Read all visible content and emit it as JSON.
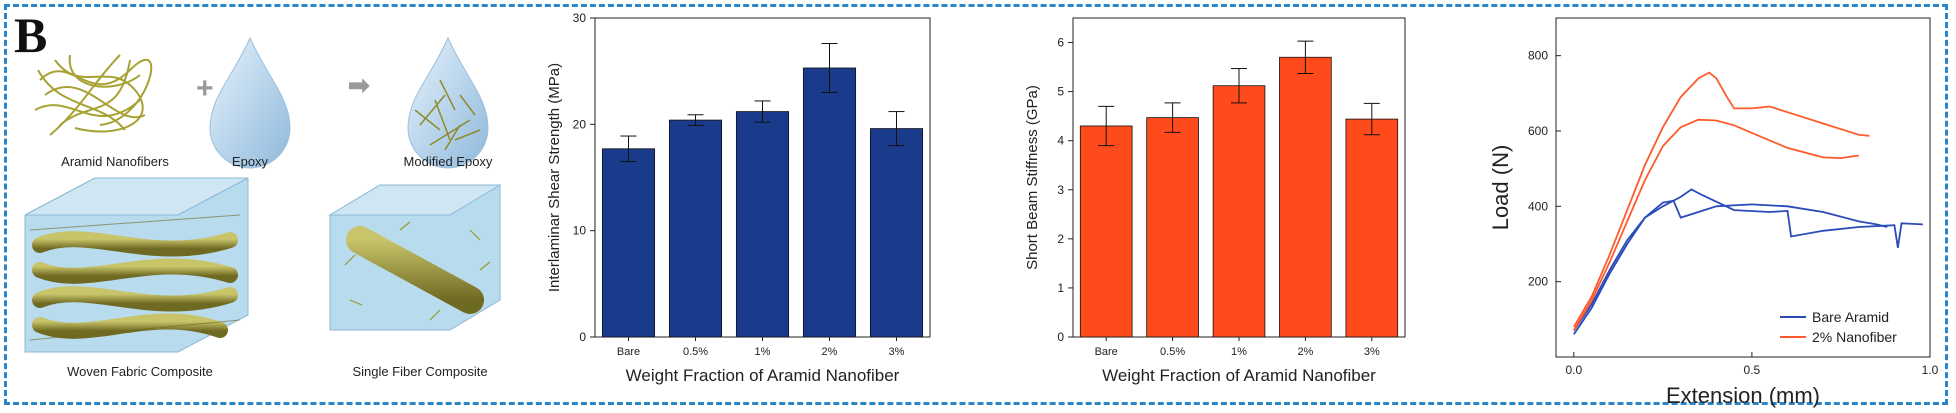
{
  "panel_label": "B",
  "schematic": {
    "labels": {
      "aramid_nanofibers": "Aramid Nanofibers",
      "epoxy": "Epoxy",
      "modified_epoxy": "Modified Epoxy",
      "woven_fabric": "Woven Fabric Composite",
      "single_fiber": "Single Fiber Composite"
    },
    "plus": "+",
    "arrow": "➡"
  },
  "chart_data": [
    {
      "type": "bar",
      "categories": [
        "Bare",
        "0.5%",
        "1%",
        "2%",
        "3%"
      ],
      "values": [
        17.7,
        20.4,
        21.2,
        25.3,
        19.6
      ],
      "errors": [
        1.2,
        0.5,
        1.0,
        2.3,
        1.6
      ],
      "xlabel": "Weight Fraction of Aramid Nanofiber",
      "ylabel": "Interlaminar Shear Strength (MPa)",
      "ylim": [
        0,
        30
      ],
      "yticks": [
        0,
        10,
        20,
        30
      ],
      "color": "#1a3a8c"
    },
    {
      "type": "bar",
      "categories": [
        "Bare",
        "0.5%",
        "1%",
        "2%",
        "3%"
      ],
      "values": [
        4.3,
        4.47,
        5.12,
        5.7,
        4.44
      ],
      "errors": [
        0.4,
        0.3,
        0.35,
        0.33,
        0.32
      ],
      "xlabel": "Weight Fraction of Aramid Nanofiber",
      "ylabel": "Short Beam Stiffness (GPa)",
      "ylim": [
        0,
        6.5
      ],
      "yticks": [
        0,
        1,
        2,
        3,
        4,
        5,
        6
      ],
      "color": "#ff4a1c"
    },
    {
      "type": "line",
      "xlabel": "Extension (mm)",
      "ylabel": "Load (N)",
      "xlim": [
        -0.05,
        1.0
      ],
      "ylim": [
        0,
        900
      ],
      "xticks": [
        0.0,
        0.5,
        1.0
      ],
      "yticks": [
        200,
        400,
        600,
        800
      ],
      "legend_position": "bottom-right",
      "series": [
        {
          "name": "Bare Aramid",
          "color": "#2b4bb8",
          "curves": [
            [
              [
                0.0,
                60
              ],
              [
                0.05,
                130
              ],
              [
                0.1,
                220
              ],
              [
                0.15,
                300
              ],
              [
                0.2,
                370
              ],
              [
                0.25,
                410
              ],
              [
                0.28,
                415
              ],
              [
                0.3,
                370
              ],
              [
                0.35,
                385
              ],
              [
                0.4,
                400
              ],
              [
                0.5,
                405
              ],
              [
                0.6,
                400
              ],
              [
                0.7,
                385
              ],
              [
                0.8,
                360
              ],
              [
                0.85,
                352
              ],
              [
                0.88,
                345
              ]
            ],
            [
              [
                0.0,
                70
              ],
              [
                0.05,
                140
              ],
              [
                0.1,
                230
              ],
              [
                0.15,
                310
              ],
              [
                0.2,
                370
              ],
              [
                0.25,
                400
              ],
              [
                0.3,
                425
              ],
              [
                0.33,
                445
              ],
              [
                0.36,
                430
              ],
              [
                0.45,
                390
              ],
              [
                0.55,
                385
              ],
              [
                0.6,
                388
              ],
              [
                0.61,
                320
              ],
              [
                0.7,
                335
              ],
              [
                0.8,
                345
              ],
              [
                0.9,
                350
              ],
              [
                0.91,
                290
              ],
              [
                0.92,
                355
              ],
              [
                0.98,
                352
              ]
            ]
          ]
        },
        {
          "name": "2% Nanofiber",
          "color": "#ff5a2b",
          "curves": [
            [
              [
                0.0,
                80
              ],
              [
                0.05,
                160
              ],
              [
                0.1,
                270
              ],
              [
                0.15,
                390
              ],
              [
                0.2,
                510
              ],
              [
                0.25,
                610
              ],
              [
                0.3,
                690
              ],
              [
                0.35,
                740
              ],
              [
                0.38,
                755
              ],
              [
                0.4,
                740
              ],
              [
                0.43,
                690
              ],
              [
                0.45,
                660
              ],
              [
                0.5,
                660
              ],
              [
                0.55,
                665
              ],
              [
                0.6,
                650
              ],
              [
                0.7,
                620
              ],
              [
                0.8,
                590
              ],
              [
                0.83,
                587
              ]
            ],
            [
              [
                0.0,
                70
              ],
              [
                0.05,
                150
              ],
              [
                0.1,
                250
              ],
              [
                0.15,
                360
              ],
              [
                0.2,
                470
              ],
              [
                0.25,
                560
              ],
              [
                0.3,
                610
              ],
              [
                0.35,
                630
              ],
              [
                0.4,
                628
              ],
              [
                0.45,
                615
              ],
              [
                0.5,
                595
              ],
              [
                0.6,
                555
              ],
              [
                0.7,
                530
              ],
              [
                0.75,
                528
              ],
              [
                0.8,
                535
              ]
            ]
          ]
        }
      ]
    }
  ]
}
